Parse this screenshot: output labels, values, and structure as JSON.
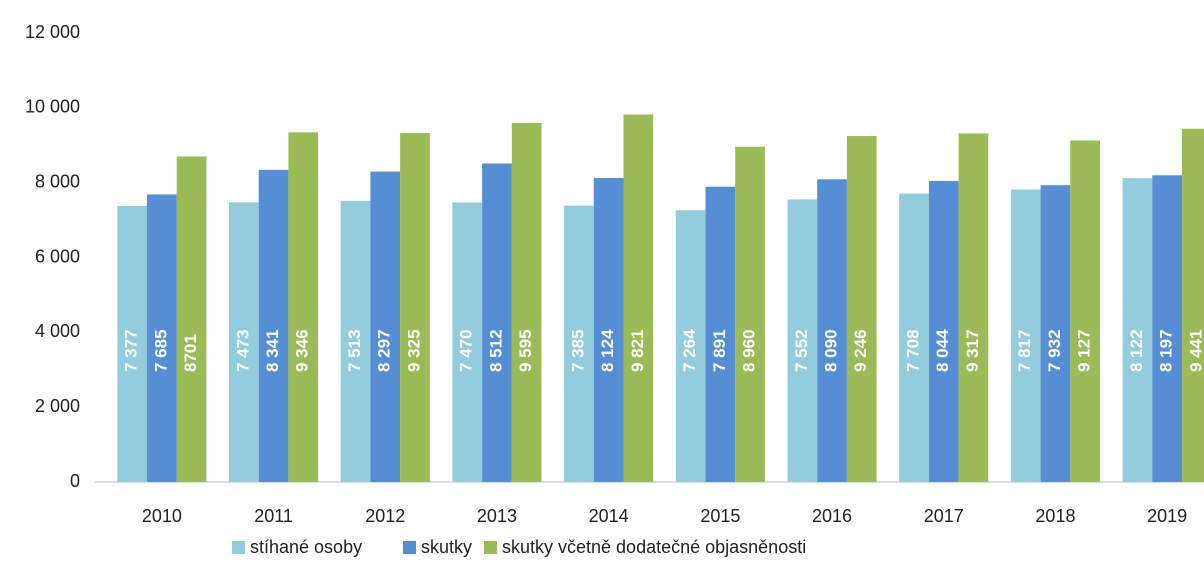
{
  "chart_data": {
    "type": "bar",
    "categories": [
      "2010",
      "2011",
      "2012",
      "2013",
      "2014",
      "2015",
      "2016",
      "2017",
      "2018",
      "2019"
    ],
    "series": [
      {
        "name": "stíhané osoby",
        "color": "#93cddd",
        "values": [
          7377,
          7473,
          7513,
          7470,
          7385,
          7264,
          7552,
          7708,
          7817,
          8122
        ],
        "value_labels": [
          "7 377",
          "7 473",
          "7 513",
          "7 470",
          "7 385",
          "7 264",
          "7 552",
          "7 708",
          "7 817",
          "8 122"
        ]
      },
      {
        "name": "skutky",
        "color": "#558ed5",
        "values": [
          7685,
          8341,
          8297,
          8512,
          8124,
          7891,
          8090,
          8044,
          7932,
          8197
        ],
        "value_labels": [
          "7 685",
          "8 341",
          "8 297",
          "8 512",
          "8 124",
          "7 891",
          "8 090",
          "8 044",
          "7 932",
          "8 197"
        ]
      },
      {
        "name": "skutky včetně dodatečné objasněnosti",
        "color": "#9bbb59",
        "values": [
          8701,
          9346,
          9325,
          9595,
          9821,
          8960,
          9246,
          9317,
          9127,
          9441
        ],
        "value_labels": [
          "8701",
          "9 346",
          "9 325",
          "9 595",
          "9 821",
          "8 960",
          "9 246",
          "9 317",
          "9 127",
          "9 441"
        ]
      }
    ],
    "ylim": [
      0,
      12000
    ],
    "yticks": [
      0,
      {
        "value": 2000,
        "label": "2 000"
      },
      {
        "value": 4000,
        "label": "4 000"
      },
      {
        "value": 6000,
        "label": "6 000"
      },
      {
        "value": 8000,
        "label": "8 000"
      },
      {
        "value": 10000,
        "label": "10 000"
      },
      {
        "value": 12000,
        "label": "12 000"
      }
    ],
    "legend": "bottom"
  }
}
